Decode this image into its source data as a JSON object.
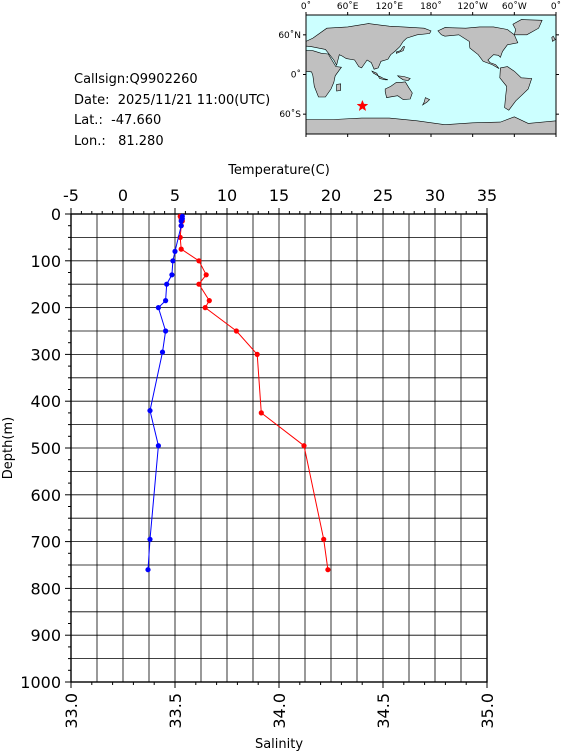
{
  "info": {
    "callsign": "Callsign:Q9902260",
    "date": "Date:  2025/11/21 11:00(UTC)",
    "lat": "Lat.:  -47.660",
    "lon": "Lon.:   81.280"
  },
  "map": {
    "lon_labels": [
      "0˚",
      "60˚E",
      "120˚E",
      "180˚",
      "120˚W",
      "60˚W",
      "0˚"
    ],
    "lat_labels": [
      "60˚N",
      "0˚",
      "60˚S"
    ],
    "marker": {
      "lon": 81.28,
      "lat": -47.66
    },
    "ocean_color": "#ccffff",
    "land_color": "#c0c0c0",
    "marker_color": "#ff0000"
  },
  "chart_data": {
    "type": "line",
    "top_axis": {
      "label": "Temperature(C)",
      "range": [
        -5,
        35
      ],
      "ticks": [
        "-5",
        "0",
        "5",
        "10",
        "15",
        "20",
        "25",
        "30",
        "35"
      ]
    },
    "bottom_axis": {
      "label": "Salinity",
      "range": [
        33.0,
        35.0
      ],
      "ticks": [
        "33.0",
        "33.5",
        "34.0",
        "34.5",
        "35.0"
      ]
    },
    "y_axis": {
      "label": "Depth(m)",
      "range": [
        0,
        1000
      ],
      "inverted": true,
      "ticks": [
        "0",
        "100",
        "200",
        "300",
        "400",
        "500",
        "600",
        "700",
        "800",
        "900",
        "1000"
      ]
    },
    "grid": true,
    "series": [
      {
        "axis": "temperature",
        "color": "#ff0000",
        "points": [
          {
            "x": 5.5,
            "depth": 5
          },
          {
            "x": 5.6,
            "depth": 10
          },
          {
            "x": 5.7,
            "depth": 15
          },
          {
            "x": 5.6,
            "depth": 25
          },
          {
            "x": 5.5,
            "depth": 50
          },
          {
            "x": 5.6,
            "depth": 75
          },
          {
            "x": 7.3,
            "depth": 100
          },
          {
            "x": 8.0,
            "depth": 130
          },
          {
            "x": 7.3,
            "depth": 150
          },
          {
            "x": 8.3,
            "depth": 185
          },
          {
            "x": 7.9,
            "depth": 200
          },
          {
            "x": 10.9,
            "depth": 250
          },
          {
            "x": 12.9,
            "depth": 300
          },
          {
            "x": 13.3,
            "depth": 425
          },
          {
            "x": 17.4,
            "depth": 495
          },
          {
            "x": 19.3,
            "depth": 695
          },
          {
            "x": 19.7,
            "depth": 760
          }
        ]
      },
      {
        "axis": "salinity",
        "color": "#0000ff",
        "points": [
          {
            "x": 33.535,
            "depth": 5
          },
          {
            "x": 33.535,
            "depth": 10
          },
          {
            "x": 33.53,
            "depth": 15
          },
          {
            "x": 33.53,
            "depth": 25
          },
          {
            "x": 33.5,
            "depth": 80
          },
          {
            "x": 33.49,
            "depth": 100
          },
          {
            "x": 33.485,
            "depth": 130
          },
          {
            "x": 33.46,
            "depth": 150
          },
          {
            "x": 33.455,
            "depth": 185
          },
          {
            "x": 33.42,
            "depth": 200
          },
          {
            "x": 33.455,
            "depth": 250
          },
          {
            "x": 33.44,
            "depth": 295
          },
          {
            "x": 33.38,
            "depth": 420
          },
          {
            "x": 33.42,
            "depth": 495
          },
          {
            "x": 33.38,
            "depth": 695
          },
          {
            "x": 33.37,
            "depth": 760
          }
        ]
      }
    ]
  }
}
